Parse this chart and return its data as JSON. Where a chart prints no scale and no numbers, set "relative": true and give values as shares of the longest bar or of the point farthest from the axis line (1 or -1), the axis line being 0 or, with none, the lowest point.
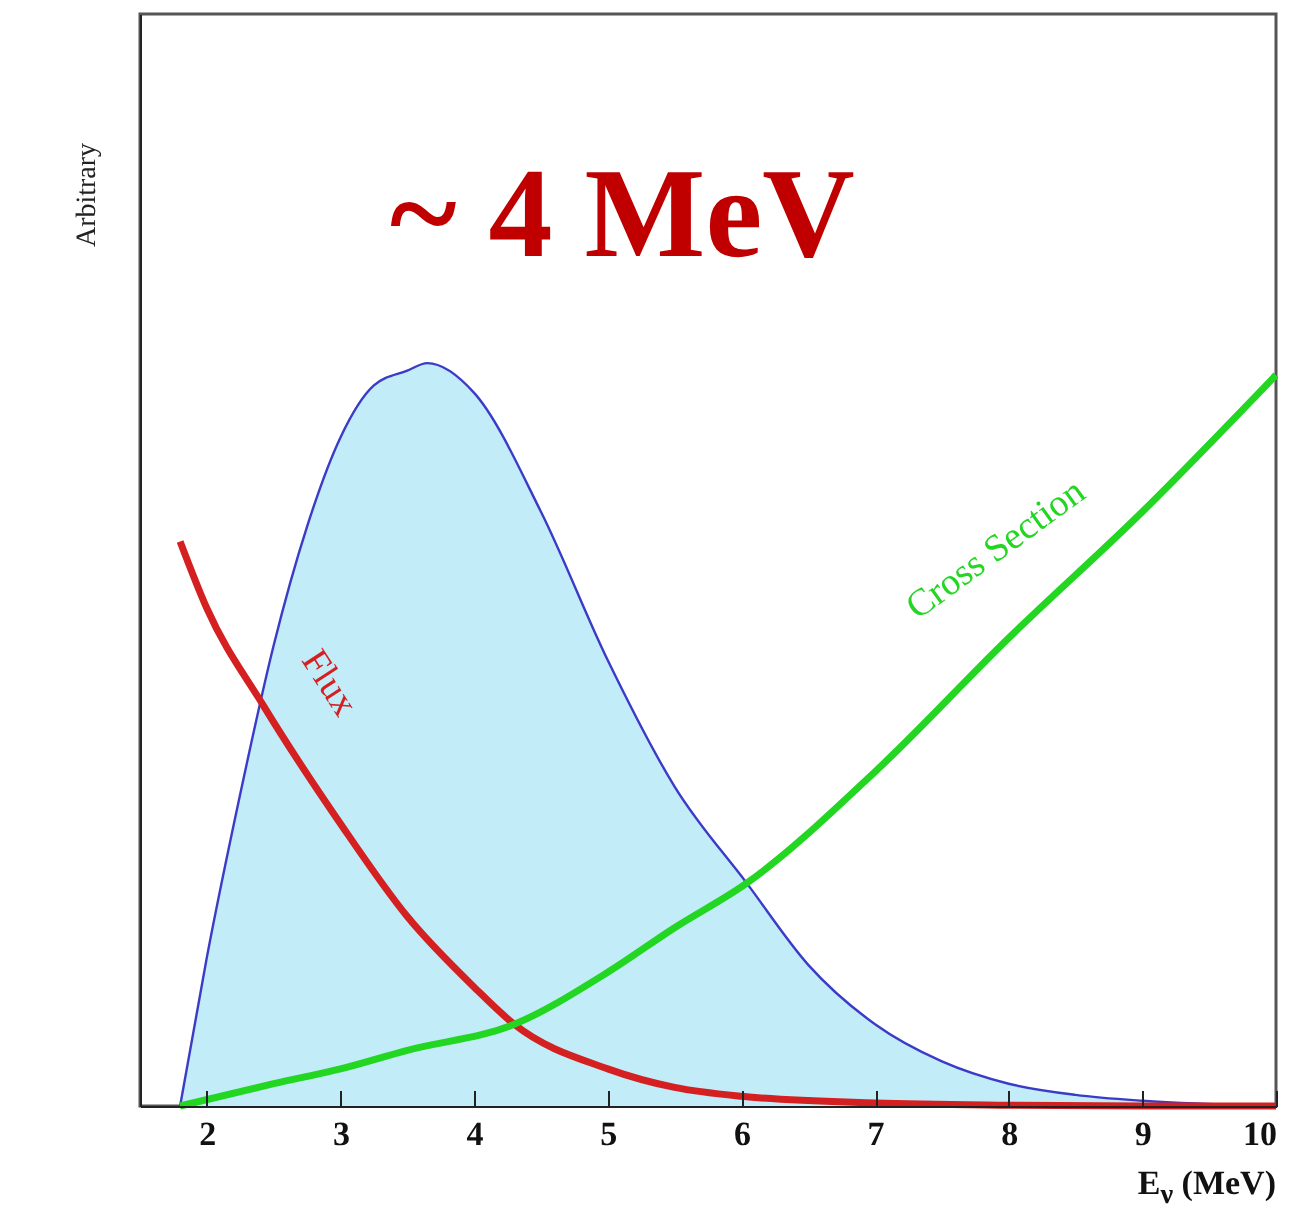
{
  "chart_data": {
    "type": "line",
    "relative": true,
    "xlabel": "E$_{ν}$ (MeV)",
    "ylabel": "Arbitrary",
    "annotations": [
      "~ 4 MeV"
    ],
    "xlim": [
      1.5,
      10
    ],
    "xticks": [
      2,
      3,
      4,
      5,
      6,
      7,
      8,
      9,
      10
    ],
    "tick_labels": "x",
    "grid": false,
    "series": [
      {
        "type": "area",
        "color": "#3b3bc8",
        "x": [
          1.8,
          2.0,
          2.25,
          2.5,
          2.75,
          3.0,
          3.25,
          3.5,
          3.65,
          4.0,
          4.5,
          5.0,
          5.5,
          6.04,
          6.5,
          7.0,
          7.5,
          8.0,
          8.5,
          9.0,
          10.0
        ],
        "values": [
          0,
          0.2,
          0.42,
          0.62,
          0.78,
          0.9,
          0.97,
          0.99,
          1.0,
          0.96,
          0.8,
          0.6,
          0.43,
          0.3,
          0.19,
          0.11,
          0.06,
          0.03,
          0.015,
          0.007,
          0
        ]
      },
      {
        "name": "Flux",
        "color": "#d42020",
        "x": [
          1.8,
          2.0,
          2.42,
          3.0,
          3.5,
          4.0,
          4.3,
          5.0,
          5.5,
          6.0,
          7.0,
          8.0,
          9.0,
          10.0
        ],
        "values": [
          0.76,
          0.67,
          0.54,
          0.38,
          0.255,
          0.16,
          0.11,
          0.05,
          0.025,
          0.013,
          0.004,
          0.001,
          0,
          0
        ]
      },
      {
        "name": "Cross Section",
        "color": "#22d622",
        "x": [
          1.8,
          2.5,
          3.0,
          3.5,
          4.3,
          5.0,
          5.5,
          6.04,
          7.0,
          8.0,
          9.0,
          10.0
        ],
        "values": [
          0,
          0.03,
          0.05,
          0.075,
          0.11,
          0.18,
          0.24,
          0.3,
          0.45,
          0.63,
          0.8,
          0.984
        ]
      }
    ]
  }
}
